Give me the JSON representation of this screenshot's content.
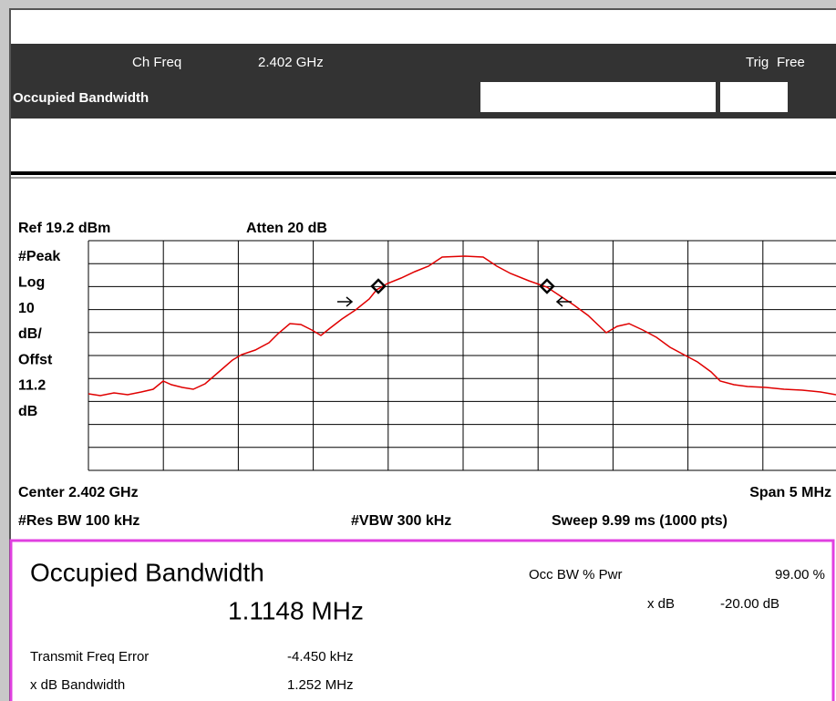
{
  "header": {
    "ch_freq_label": "Ch Freq",
    "ch_freq": "2.402 GHz",
    "trig_label": "Trig",
    "trig_value": "Free",
    "mode_title": "Occupied Bandwidth"
  },
  "display": {
    "ref": "Ref 19.2 dBm",
    "atten": "Atten 20 dB",
    "left_labels": [
      "#Peak",
      "Log",
      "10",
      "dB/",
      "Offst",
      "11.2",
      "dB"
    ],
    "center": "Center 2.402 GHz",
    "span": "Span 5 MHz",
    "res_bw": "#Res BW 100 kHz",
    "vbw": "#VBW 300 kHz",
    "sweep": "Sweep 9.99 ms (1000 pts)"
  },
  "results": {
    "title": "Occupied Bandwidth",
    "value": "1.1148 MHz",
    "occ_bw_label": "Occ BW % Pwr",
    "occ_bw_value": "99.00 %",
    "xdb_label": "x dB",
    "xdb_value": "-20.00 dB",
    "rows": [
      [
        "Transmit Freq Error",
        "-4.450 kHz"
      ],
      [
        "x dB Bandwidth",
        "1.252 MHz"
      ]
    ]
  }
}
